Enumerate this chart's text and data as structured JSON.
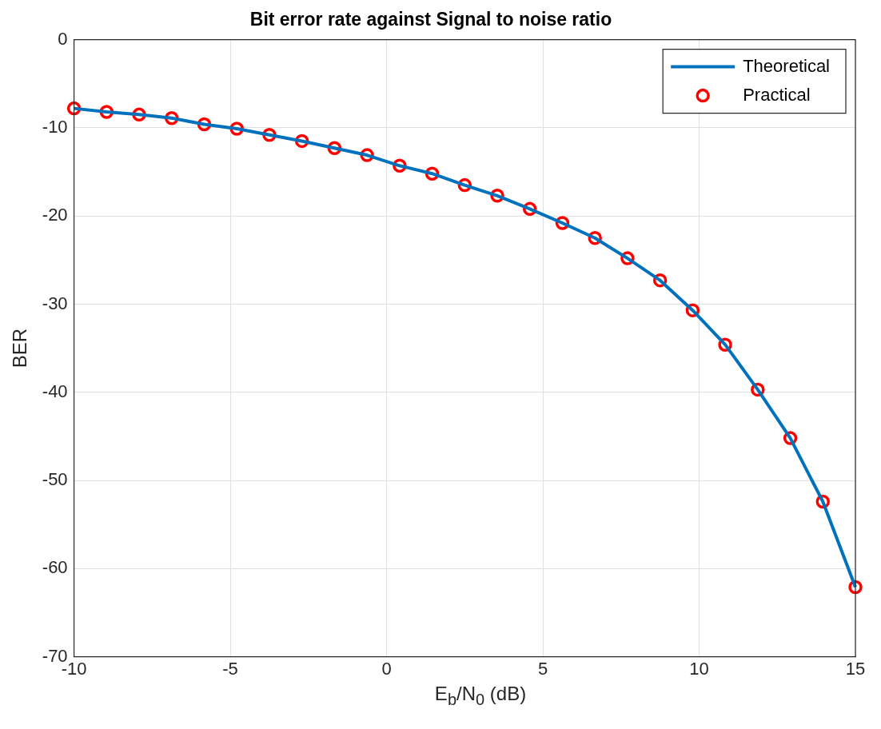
{
  "chart_data": {
    "type": "line",
    "title": "Bit error rate against Signal to noise ratio",
    "xlabel": "E$_{b}$/N$_{0}$ (dB)",
    "ylabel": "BER",
    "x": [
      -10,
      -8.958,
      -7.917,
      -6.875,
      -5.833,
      -4.792,
      -3.75,
      -2.708,
      -1.667,
      -0.625,
      0.417,
      1.458,
      2.5,
      3.542,
      4.583,
      5.625,
      6.667,
      7.708,
      8.75,
      9.792,
      10.833,
      11.875,
      12.917,
      13.958,
      15
    ],
    "series": [
      {
        "name": "Theoretical",
        "type": "line",
        "color": "#0072bd",
        "marker": "none",
        "line_style": "solid",
        "values": [
          -7.8,
          -8.2,
          -8.5,
          -8.9,
          -9.6,
          -10.1,
          -10.8,
          -11.5,
          -12.3,
          -13.1,
          -14.3,
          -15.2,
          -16.5,
          -17.7,
          -19.2,
          -20.8,
          -22.5,
          -24.8,
          -27.3,
          -30.7,
          -34.6,
          -39.7,
          -45.2,
          -52.4,
          -62.1
        ]
      },
      {
        "name": "Practical",
        "type": "scatter",
        "color": "#ff0000",
        "marker": "circle",
        "values": [
          -7.8,
          -8.2,
          -8.5,
          -8.9,
          -9.6,
          -10.1,
          -10.8,
          -11.5,
          -12.3,
          -13.1,
          -14.3,
          -15.2,
          -16.5,
          -17.7,
          -19.2,
          -20.8,
          -22.5,
          -24.8,
          -27.3,
          -30.7,
          -34.6,
          -39.7,
          -45.2,
          -52.4,
          -62.1
        ]
      }
    ],
    "xlim": [
      -10,
      15
    ],
    "xticks": [
      -10,
      -5,
      0,
      5,
      10,
      15
    ],
    "ylim": [
      -70,
      0
    ],
    "yticks": [
      -70,
      -60,
      -50,
      -40,
      -30,
      -20,
      -10,
      0
    ],
    "grid": true,
    "legend": "top right"
  }
}
